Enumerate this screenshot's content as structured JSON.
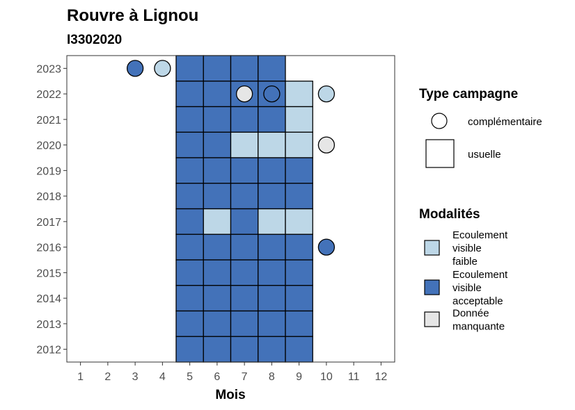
{
  "chart_data": {
    "type": "heatmap",
    "title": "Rouvre à Lignou",
    "subtitle": "I3302020",
    "xlabel": "Mois",
    "ylabel": "",
    "x_ticks": [
      1,
      2,
      3,
      4,
      5,
      6,
      7,
      8,
      9,
      10,
      11,
      12
    ],
    "y_ticks": [
      2012,
      2013,
      2014,
      2015,
      2016,
      2017,
      2018,
      2019,
      2020,
      2021,
      2022,
      2023
    ],
    "xlim": [
      0.5,
      12.5
    ],
    "ylim": [
      2011.5,
      2023.5
    ],
    "grid": false,
    "colors": {
      "faible": "#bdd7e7",
      "acceptable": "#4372b9",
      "manquante": "#e6e6e6"
    },
    "usuelle": [
      {
        "year": 2023,
        "months": {
          "5": "acceptable",
          "6": "acceptable",
          "7": "acceptable",
          "8": "acceptable"
        }
      },
      {
        "year": 2022,
        "months": {
          "5": "acceptable",
          "6": "acceptable",
          "7": "acceptable",
          "8": "acceptable",
          "9": "faible"
        }
      },
      {
        "year": 2021,
        "months": {
          "5": "acceptable",
          "6": "acceptable",
          "7": "acceptable",
          "8": "acceptable",
          "9": "faible"
        }
      },
      {
        "year": 2020,
        "months": {
          "5": "acceptable",
          "6": "acceptable",
          "7": "faible",
          "8": "faible",
          "9": "faible"
        }
      },
      {
        "year": 2019,
        "months": {
          "5": "acceptable",
          "6": "acceptable",
          "7": "acceptable",
          "8": "acceptable",
          "9": "acceptable"
        }
      },
      {
        "year": 2018,
        "months": {
          "5": "acceptable",
          "6": "acceptable",
          "7": "acceptable",
          "8": "acceptable",
          "9": "acceptable"
        }
      },
      {
        "year": 2017,
        "months": {
          "5": "acceptable",
          "6": "faible",
          "7": "acceptable",
          "8": "faible",
          "9": "faible"
        }
      },
      {
        "year": 2016,
        "months": {
          "5": "acceptable",
          "6": "acceptable",
          "7": "acceptable",
          "8": "acceptable",
          "9": "acceptable"
        }
      },
      {
        "year": 2015,
        "months": {
          "5": "acceptable",
          "6": "acceptable",
          "7": "acceptable",
          "8": "acceptable",
          "9": "acceptable"
        }
      },
      {
        "year": 2014,
        "months": {
          "5": "acceptable",
          "6": "acceptable",
          "7": "acceptable",
          "8": "acceptable",
          "9": "acceptable"
        }
      },
      {
        "year": 2013,
        "months": {
          "5": "acceptable",
          "6": "acceptable",
          "7": "acceptable",
          "8": "acceptable",
          "9": "acceptable"
        }
      },
      {
        "year": 2012,
        "months": {
          "5": "acceptable",
          "6": "acceptable",
          "7": "acceptable",
          "8": "acceptable",
          "9": "acceptable"
        }
      }
    ],
    "complementaire": [
      {
        "year": 2023,
        "month": 3,
        "mod": "acceptable"
      },
      {
        "year": 2023,
        "month": 4,
        "mod": "faible"
      },
      {
        "year": 2022,
        "month": 7,
        "mod": "manquante"
      },
      {
        "year": 2022,
        "month": 8,
        "mod": "acceptable"
      },
      {
        "year": 2022,
        "month": 10,
        "mod": "faible"
      },
      {
        "year": 2020,
        "month": 10,
        "mod": "manquante"
      },
      {
        "year": 2016,
        "month": 10,
        "mod": "acceptable"
      }
    ],
    "legend_type": {
      "title": "Type campagne",
      "items": [
        "complémentaire",
        "usuelle"
      ]
    },
    "legend_mod": {
      "title": "Modalités",
      "items": [
        {
          "key": "faible",
          "lines": [
            "Ecoulement",
            "visible",
            "faible"
          ]
        },
        {
          "key": "acceptable",
          "lines": [
            "Ecoulement",
            "visible",
            "acceptable"
          ]
        },
        {
          "key": "manquante",
          "lines": [
            "Donnée",
            "manquante"
          ]
        }
      ]
    }
  }
}
